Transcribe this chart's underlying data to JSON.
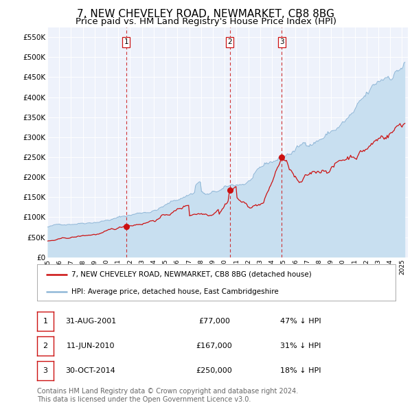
{
  "title": "7, NEW CHEVELEY ROAD, NEWMARKET, CB8 8BG",
  "subtitle": "Price paid vs. HM Land Registry's House Price Index (HPI)",
  "title_fontsize": 11,
  "subtitle_fontsize": 9.5,
  "background_color": "#ffffff",
  "plot_bg_color": "#eef2fb",
  "grid_color": "#ffffff",
  "ylim": [
    0,
    575000
  ],
  "yticks": [
    0,
    50000,
    100000,
    150000,
    200000,
    250000,
    300000,
    350000,
    400000,
    450000,
    500000,
    550000
  ],
  "ytick_labels": [
    "£0",
    "£50K",
    "£100K",
    "£150K",
    "£200K",
    "£250K",
    "£300K",
    "£350K",
    "£400K",
    "£450K",
    "£500K",
    "£550K"
  ],
  "xlim_start": 1995.0,
  "xlim_end": 2025.5,
  "xticks": [
    1995,
    1996,
    1997,
    1998,
    1999,
    2000,
    2001,
    2002,
    2003,
    2004,
    2005,
    2006,
    2007,
    2008,
    2009,
    2010,
    2011,
    2012,
    2013,
    2014,
    2015,
    2016,
    2017,
    2018,
    2019,
    2020,
    2021,
    2022,
    2023,
    2024,
    2025
  ],
  "sale_color": "#cc1111",
  "hpi_color": "#90b8d8",
  "hpi_fill_color": "#c8dff0",
  "vline_color": "#cc1111",
  "legend_label_sale": "7, NEW CHEVELEY ROAD, NEWMARKET, CB8 8BG (detached house)",
  "legend_label_hpi": "HPI: Average price, detached house, East Cambridgeshire",
  "sale_dates": [
    2001.664,
    2010.44,
    2014.831
  ],
  "sale_prices": [
    77000,
    167000,
    250000
  ],
  "sale_labels": [
    "1",
    "2",
    "3"
  ],
  "table_rows": [
    [
      "1",
      "31-AUG-2001",
      "£77,000",
      "47% ↓ HPI"
    ],
    [
      "2",
      "11-JUN-2010",
      "£167,000",
      "31% ↓ HPI"
    ],
    [
      "3",
      "30-OCT-2014",
      "£250,000",
      "18% ↓ HPI"
    ]
  ],
  "footnote": "Contains HM Land Registry data © Crown copyright and database right 2024.\nThis data is licensed under the Open Government Licence v3.0.",
  "footnote_fontsize": 7.0
}
